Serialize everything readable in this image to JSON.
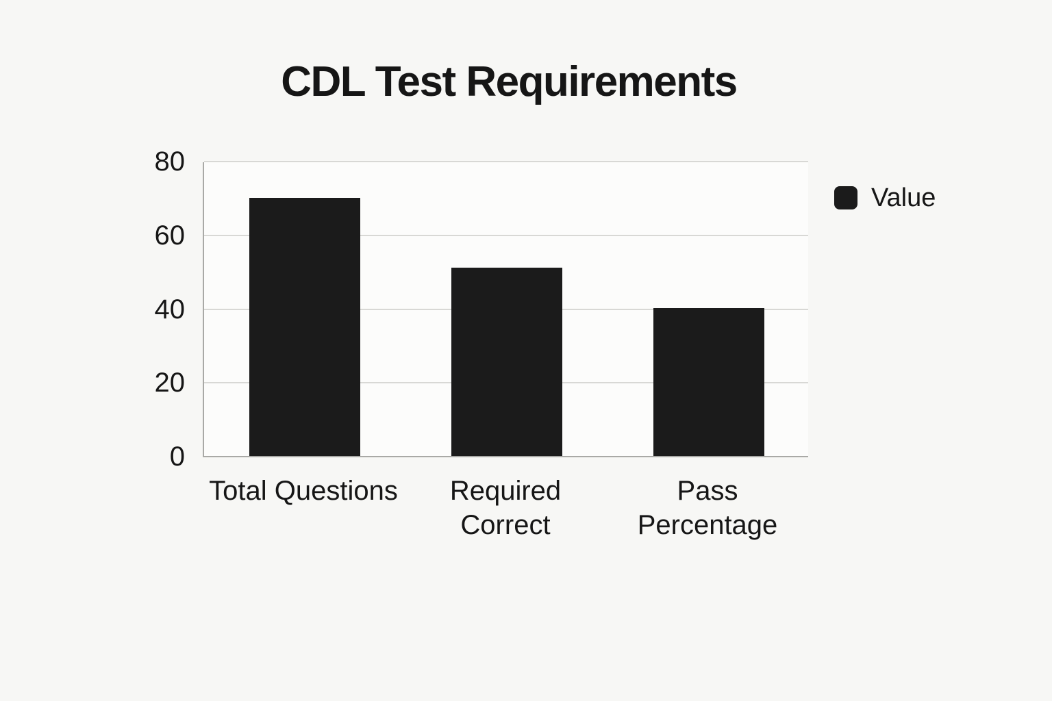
{
  "chart_data": {
    "type": "bar",
    "title": "CDL Test Requirements",
    "categories": [
      "Total Questions",
      "Required Correct",
      "Pass Percentage"
    ],
    "values": [
      70,
      51,
      40
    ],
    "series": [
      {
        "name": "Value",
        "values": [
          70,
          51,
          40
        ]
      }
    ],
    "xlabel": "",
    "ylabel": "",
    "ylim": [
      0,
      80
    ],
    "yticks": [
      0,
      20,
      40,
      60,
      80
    ],
    "grid": true,
    "legend_position": "right",
    "colors": {
      "bar": "#1b1b1b",
      "background": "#f7f7f5",
      "plot_background": "#fcfcfb",
      "gridline": "#d8d8d5",
      "axis": "#a9a9a6",
      "text": "#161616"
    }
  },
  "legend": {
    "label": "Value"
  }
}
